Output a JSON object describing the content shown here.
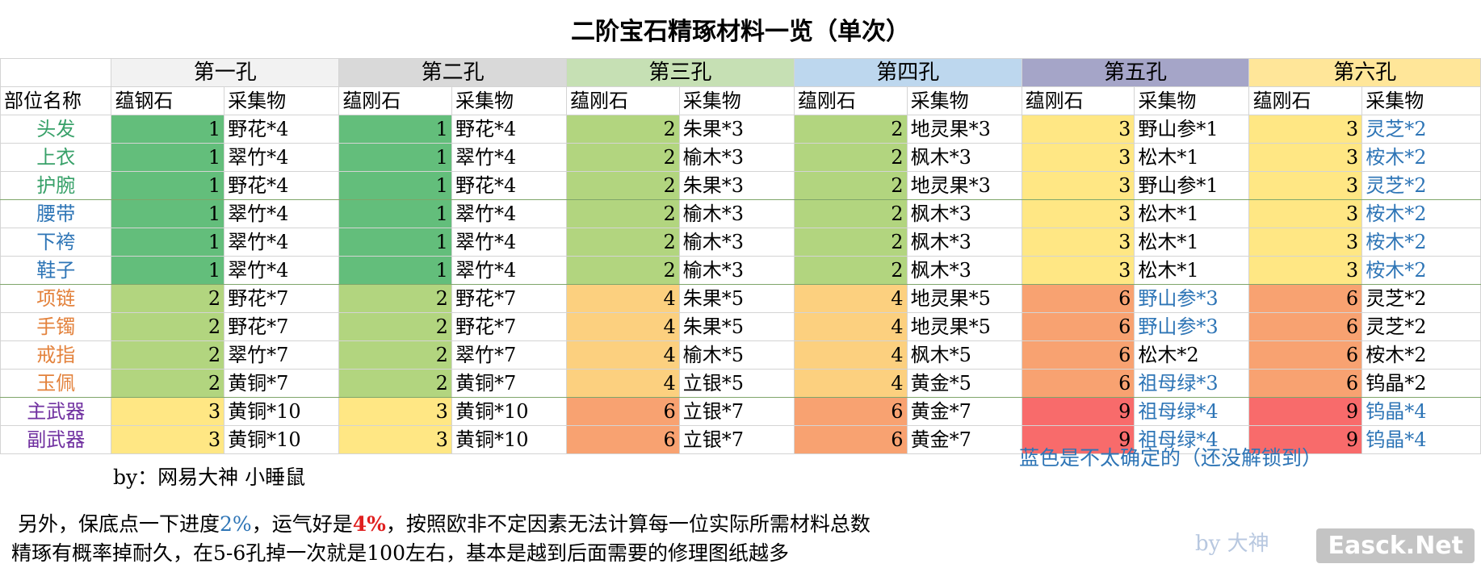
{
  "title": "二阶宝石精琢材料一览（单次）",
  "holes": [
    {
      "label": "第一孔",
      "color": "#f2f2f2"
    },
    {
      "label": "第二孔",
      "color": "#d9d9d9"
    },
    {
      "label": "第三孔",
      "color": "#c6e0b4"
    },
    {
      "label": "第四孔",
      "color": "#bdd7ee"
    },
    {
      "label": "第五孔",
      "color": "#a5a5c8"
    },
    {
      "label": "第六孔",
      "color": "#ffe699"
    }
  ],
  "headers": {
    "part": "部位名称",
    "cols": [
      "蕴钢石",
      "采集物",
      "蕴刚石",
      "采集物",
      "蕴刚石",
      "采集物",
      "蕴刚石",
      "采集物",
      "蕴刚石",
      "采集物",
      "蕴刚石",
      "采集物"
    ]
  },
  "palette": {
    "dark_green": "#63be7b",
    "light_green": "#b2d57f",
    "yellow": "#ffe784",
    "orange": "#fcd07f",
    "salmon": "#f8a271",
    "red": "#f86b6b",
    "blue_text": "#2e75b6"
  },
  "rows": [
    {
      "part": "头发",
      "part_color": "#38a169",
      "cells": [
        [
          "1",
          "野花*4"
        ],
        [
          "1",
          "野花*4"
        ],
        [
          "2",
          "朱果*3"
        ],
        [
          "2",
          "地灵果*3"
        ],
        [
          "3",
          "野山参*1"
        ],
        [
          "3",
          "灵芝*2"
        ]
      ],
      "blue": [
        false,
        false,
        false,
        false,
        false,
        true
      ]
    },
    {
      "part": "上衣",
      "part_color": "#38a169",
      "cells": [
        [
          "1",
          "翠竹*4"
        ],
        [
          "1",
          "翠竹*4"
        ],
        [
          "2",
          "榆木*3"
        ],
        [
          "2",
          "枫木*3"
        ],
        [
          "3",
          "松木*1"
        ],
        [
          "3",
          "桉木*2"
        ]
      ],
      "blue": [
        false,
        false,
        false,
        false,
        false,
        true
      ]
    },
    {
      "part": "护腕",
      "part_color": "#38a169",
      "cells": [
        [
          "1",
          "野花*4"
        ],
        [
          "1",
          "野花*4"
        ],
        [
          "2",
          "朱果*3"
        ],
        [
          "2",
          "地灵果*3"
        ],
        [
          "3",
          "野山参*1"
        ],
        [
          "3",
          "灵芝*2"
        ]
      ],
      "blue": [
        false,
        false,
        false,
        false,
        false,
        true
      ]
    },
    {
      "part": "腰带",
      "part_color": "#2e75b6",
      "cells": [
        [
          "1",
          "翠竹*4"
        ],
        [
          "1",
          "翠竹*4"
        ],
        [
          "2",
          "榆木*3"
        ],
        [
          "2",
          "枫木*3"
        ],
        [
          "3",
          "松木*1"
        ],
        [
          "3",
          "桉木*2"
        ]
      ],
      "blue": [
        false,
        false,
        false,
        false,
        false,
        true
      ]
    },
    {
      "part": "下袴",
      "part_color": "#2e75b6",
      "cells": [
        [
          "1",
          "翠竹*4"
        ],
        [
          "1",
          "翠竹*4"
        ],
        [
          "2",
          "榆木*3"
        ],
        [
          "2",
          "枫木*3"
        ],
        [
          "3",
          "松木*1"
        ],
        [
          "3",
          "桉木*2"
        ]
      ],
      "blue": [
        false,
        false,
        false,
        false,
        false,
        true
      ]
    },
    {
      "part": "鞋子",
      "part_color": "#2e75b6",
      "cells": [
        [
          "1",
          "翠竹*4"
        ],
        [
          "1",
          "翠竹*4"
        ],
        [
          "2",
          "榆木*3"
        ],
        [
          "2",
          "枫木*3"
        ],
        [
          "3",
          "松木*1"
        ],
        [
          "3",
          "桉木*2"
        ]
      ],
      "blue": [
        false,
        false,
        false,
        false,
        false,
        true
      ]
    },
    {
      "part": "项链",
      "part_color": "#e3823c",
      "cells": [
        [
          "2",
          "野花*7"
        ],
        [
          "2",
          "野花*7"
        ],
        [
          "4",
          "朱果*5"
        ],
        [
          "4",
          "地灵果*5"
        ],
        [
          "6",
          "野山参*3"
        ],
        [
          "6",
          "灵芝*2"
        ]
      ],
      "blue": [
        false,
        false,
        false,
        false,
        true,
        false
      ]
    },
    {
      "part": "手镯",
      "part_color": "#e3823c",
      "cells": [
        [
          "2",
          "野花*7"
        ],
        [
          "2",
          "野花*7"
        ],
        [
          "4",
          "朱果*5"
        ],
        [
          "4",
          "地灵果*5"
        ],
        [
          "6",
          "野山参*3"
        ],
        [
          "6",
          "灵芝*2"
        ]
      ],
      "blue": [
        false,
        false,
        false,
        false,
        true,
        false
      ]
    },
    {
      "part": "戒指",
      "part_color": "#e3823c",
      "cells": [
        [
          "2",
          "翠竹*7"
        ],
        [
          "2",
          "翠竹*7"
        ],
        [
          "4",
          "榆木*5"
        ],
        [
          "4",
          "枫木*5"
        ],
        [
          "6",
          "松木*2"
        ],
        [
          "6",
          "桉木*2"
        ]
      ],
      "blue": [
        false,
        false,
        false,
        false,
        false,
        false
      ]
    },
    {
      "part": "玉佩",
      "part_color": "#e3823c",
      "cells": [
        [
          "2",
          "黄铜*7"
        ],
        [
          "2",
          "黄铜*7"
        ],
        [
          "4",
          "立银*5"
        ],
        [
          "4",
          "黄金*5"
        ],
        [
          "6",
          "祖母绿*3"
        ],
        [
          "6",
          "钨晶*2"
        ]
      ],
      "blue": [
        false,
        false,
        false,
        false,
        true,
        false
      ]
    },
    {
      "part": "主武器",
      "part_color": "#7030a0",
      "cells": [
        [
          "3",
          "黄铜*10"
        ],
        [
          "3",
          "黄铜*10"
        ],
        [
          "6",
          "立银*7"
        ],
        [
          "6",
          "黄金*7"
        ],
        [
          "9",
          "祖母绿*4"
        ],
        [
          "9",
          "钨晶*4"
        ]
      ],
      "blue": [
        false,
        false,
        false,
        false,
        true,
        true
      ]
    },
    {
      "part": "副武器",
      "part_color": "#7030a0",
      "cells": [
        [
          "3",
          "黄铜*10"
        ],
        [
          "3",
          "黄铜*10"
        ],
        [
          "6",
          "立银*7"
        ],
        [
          "6",
          "黄金*7"
        ],
        [
          "9",
          "祖母绿*4"
        ],
        [
          "9",
          "钨晶*4"
        ]
      ],
      "blue": [
        false,
        false,
        false,
        false,
        true,
        true
      ]
    }
  ],
  "shade_keys": [
    [
      "dark_green",
      "dark_green",
      "light_green",
      "light_green",
      "yellow",
      "yellow"
    ],
    [
      "dark_green",
      "dark_green",
      "light_green",
      "light_green",
      "yellow",
      "yellow"
    ],
    [
      "dark_green",
      "dark_green",
      "light_green",
      "light_green",
      "yellow",
      "yellow"
    ],
    [
      "dark_green",
      "dark_green",
      "light_green",
      "light_green",
      "yellow",
      "yellow"
    ],
    [
      "dark_green",
      "dark_green",
      "light_green",
      "light_green",
      "yellow",
      "yellow"
    ],
    [
      "dark_green",
      "dark_green",
      "light_green",
      "light_green",
      "yellow",
      "yellow"
    ],
    [
      "light_green",
      "light_green",
      "orange",
      "orange",
      "salmon",
      "salmon"
    ],
    [
      "light_green",
      "light_green",
      "orange",
      "orange",
      "salmon",
      "salmon"
    ],
    [
      "light_green",
      "light_green",
      "orange",
      "orange",
      "salmon",
      "salmon"
    ],
    [
      "light_green",
      "light_green",
      "orange",
      "orange",
      "salmon",
      "salmon"
    ],
    [
      "yellow",
      "yellow",
      "salmon",
      "salmon",
      "red",
      "red"
    ],
    [
      "yellow",
      "yellow",
      "salmon",
      "salmon",
      "red",
      "red"
    ]
  ],
  "footer": {
    "by": "by：网易大神  小睡鼠",
    "blue_note": "蓝色是不太确定的（还没解锁到）",
    "line1_a": "另外，保底点一下进度",
    "line1_pct1": "2%",
    "line1_b": "，运气好是",
    "line1_pct2": "4%",
    "line1_c": "，按照欧非不定因素无法计算每一位实际所需材料总数",
    "line2": "精琢有概率掉耐久，在5-6孔掉一次就是100左右，基本是越到后面需要的修理图纸越多",
    "watermark": "Easck.Net",
    "watermark2": "by 大神"
  }
}
